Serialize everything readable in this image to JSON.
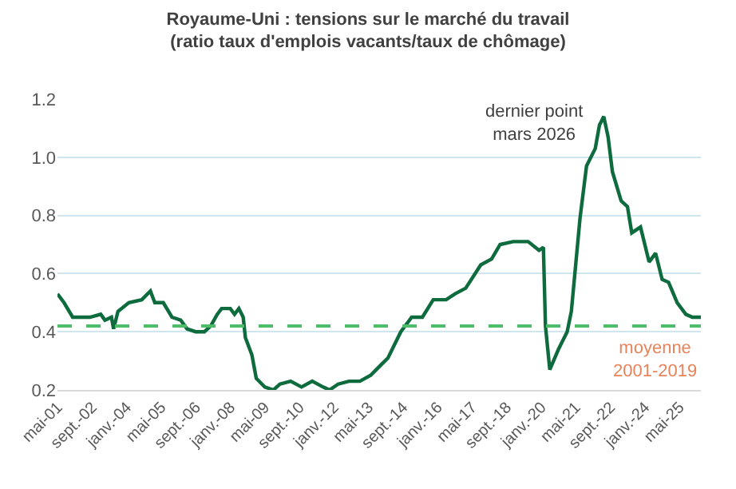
{
  "chart_data": {
    "type": "line",
    "title": "Royaume-Uni : tensions sur le marché du travail\n(ratio taux d'emplois vacants/taux de chômage)",
    "x": [
      "2001-05",
      "2001-08",
      "2001-12",
      "2002-08",
      "2003-01",
      "2003-03",
      "2003-06",
      "2003-07",
      "2003-09",
      "2004-02",
      "2004-08",
      "2004-12",
      "2005-02",
      "2005-06",
      "2005-10",
      "2006-02",
      "2006-05",
      "2006-09",
      "2007-01",
      "2007-04",
      "2007-07",
      "2007-09",
      "2008-01",
      "2008-03",
      "2008-05",
      "2008-07",
      "2008-08",
      "2008-11",
      "2009-01",
      "2009-05",
      "2009-09",
      "2009-12",
      "2010-05",
      "2010-10",
      "2011-03",
      "2011-08",
      "2011-11",
      "2012-03",
      "2012-08",
      "2013-01",
      "2013-06",
      "2013-10",
      "2014-02",
      "2014-08",
      "2015-01",
      "2015-06",
      "2015-11",
      "2016-05",
      "2016-09",
      "2017-02",
      "2017-09",
      "2018-02",
      "2018-06",
      "2018-12",
      "2019-07",
      "2019-12",
      "2020-02",
      "2020-03",
      "2020-05",
      "2020-09",
      "2021-01",
      "2021-03",
      "2021-07",
      "2021-10",
      "2022-02",
      "2022-04",
      "2022-06",
      "2022-08",
      "2022-10",
      "2023-02",
      "2023-05",
      "2023-07",
      "2023-11",
      "2024-03",
      "2024-06",
      "2024-09",
      "2024-12",
      "2025-04",
      "2025-08",
      "2025-11",
      "2026-03"
    ],
    "series": [
      {
        "color": "#0e6b3e",
        "values": [
          0.53,
          0.5,
          0.45,
          0.45,
          0.46,
          0.44,
          0.45,
          0.41,
          0.47,
          0.5,
          0.51,
          0.54,
          0.5,
          0.5,
          0.45,
          0.44,
          0.41,
          0.4,
          0.4,
          0.42,
          0.46,
          0.48,
          0.48,
          0.46,
          0.48,
          0.45,
          0.38,
          0.32,
          0.24,
          0.21,
          0.2,
          0.22,
          0.23,
          0.21,
          0.23,
          0.21,
          0.2,
          0.22,
          0.23,
          0.23,
          0.25,
          0.28,
          0.31,
          0.4,
          0.45,
          0.45,
          0.51,
          0.51,
          0.53,
          0.55,
          0.63,
          0.65,
          0.7,
          0.71,
          0.71,
          0.68,
          0.69,
          0.42,
          0.27,
          0.34,
          0.4,
          0.47,
          0.79,
          0.97,
          1.03,
          1.11,
          1.14,
          1.07,
          0.95,
          0.85,
          0.83,
          0.74,
          0.76,
          0.64,
          0.67,
          0.58,
          0.57,
          0.5,
          0.46,
          0.45,
          0.45
        ]
      }
    ],
    "xlim": [
      "2001-05",
      "2026-03"
    ],
    "xticks": [
      {
        "value": "2001-05",
        "label": "mai-01"
      },
      {
        "value": "2002-09",
        "label": "sept.-02"
      },
      {
        "value": "2004-01",
        "label": "janv.-04"
      },
      {
        "value": "2005-05",
        "label": "mai-05"
      },
      {
        "value": "2006-09",
        "label": "sept.-06"
      },
      {
        "value": "2008-01",
        "label": "janv.-08"
      },
      {
        "value": "2009-05",
        "label": "mai-09"
      },
      {
        "value": "2010-09",
        "label": "sept.-10"
      },
      {
        "value": "2012-01",
        "label": "janv.-12"
      },
      {
        "value": "2013-05",
        "label": "mai-13"
      },
      {
        "value": "2014-09",
        "label": "sept.-14"
      },
      {
        "value": "2016-01",
        "label": "janv.-16"
      },
      {
        "value": "2017-05",
        "label": "mai-17"
      },
      {
        "value": "2018-09",
        "label": "sept.-18"
      },
      {
        "value": "2020-01",
        "label": "janv.-20"
      },
      {
        "value": "2021-05",
        "label": "mai-21"
      },
      {
        "value": "2022-09",
        "label": "sept.-22"
      },
      {
        "value": "2024-01",
        "label": "janv.-24"
      },
      {
        "value": "2025-05",
        "label": "mai-25"
      }
    ],
    "ylim": [
      0.2,
      1.2
    ],
    "yticks": [
      0.2,
      0.4,
      0.6,
      0.8,
      {
        "value": 1,
        "label": "1.0"
      },
      1.2
    ],
    "grid": "y",
    "ref_lines": [
      {
        "axis": "y",
        "value": 0.42,
        "label": "moyenne\n2001-2019",
        "color": "#4dbd6a",
        "line_style": "dashed"
      }
    ],
    "annotations": [
      "dernier point\nmars 2026"
    ]
  }
}
